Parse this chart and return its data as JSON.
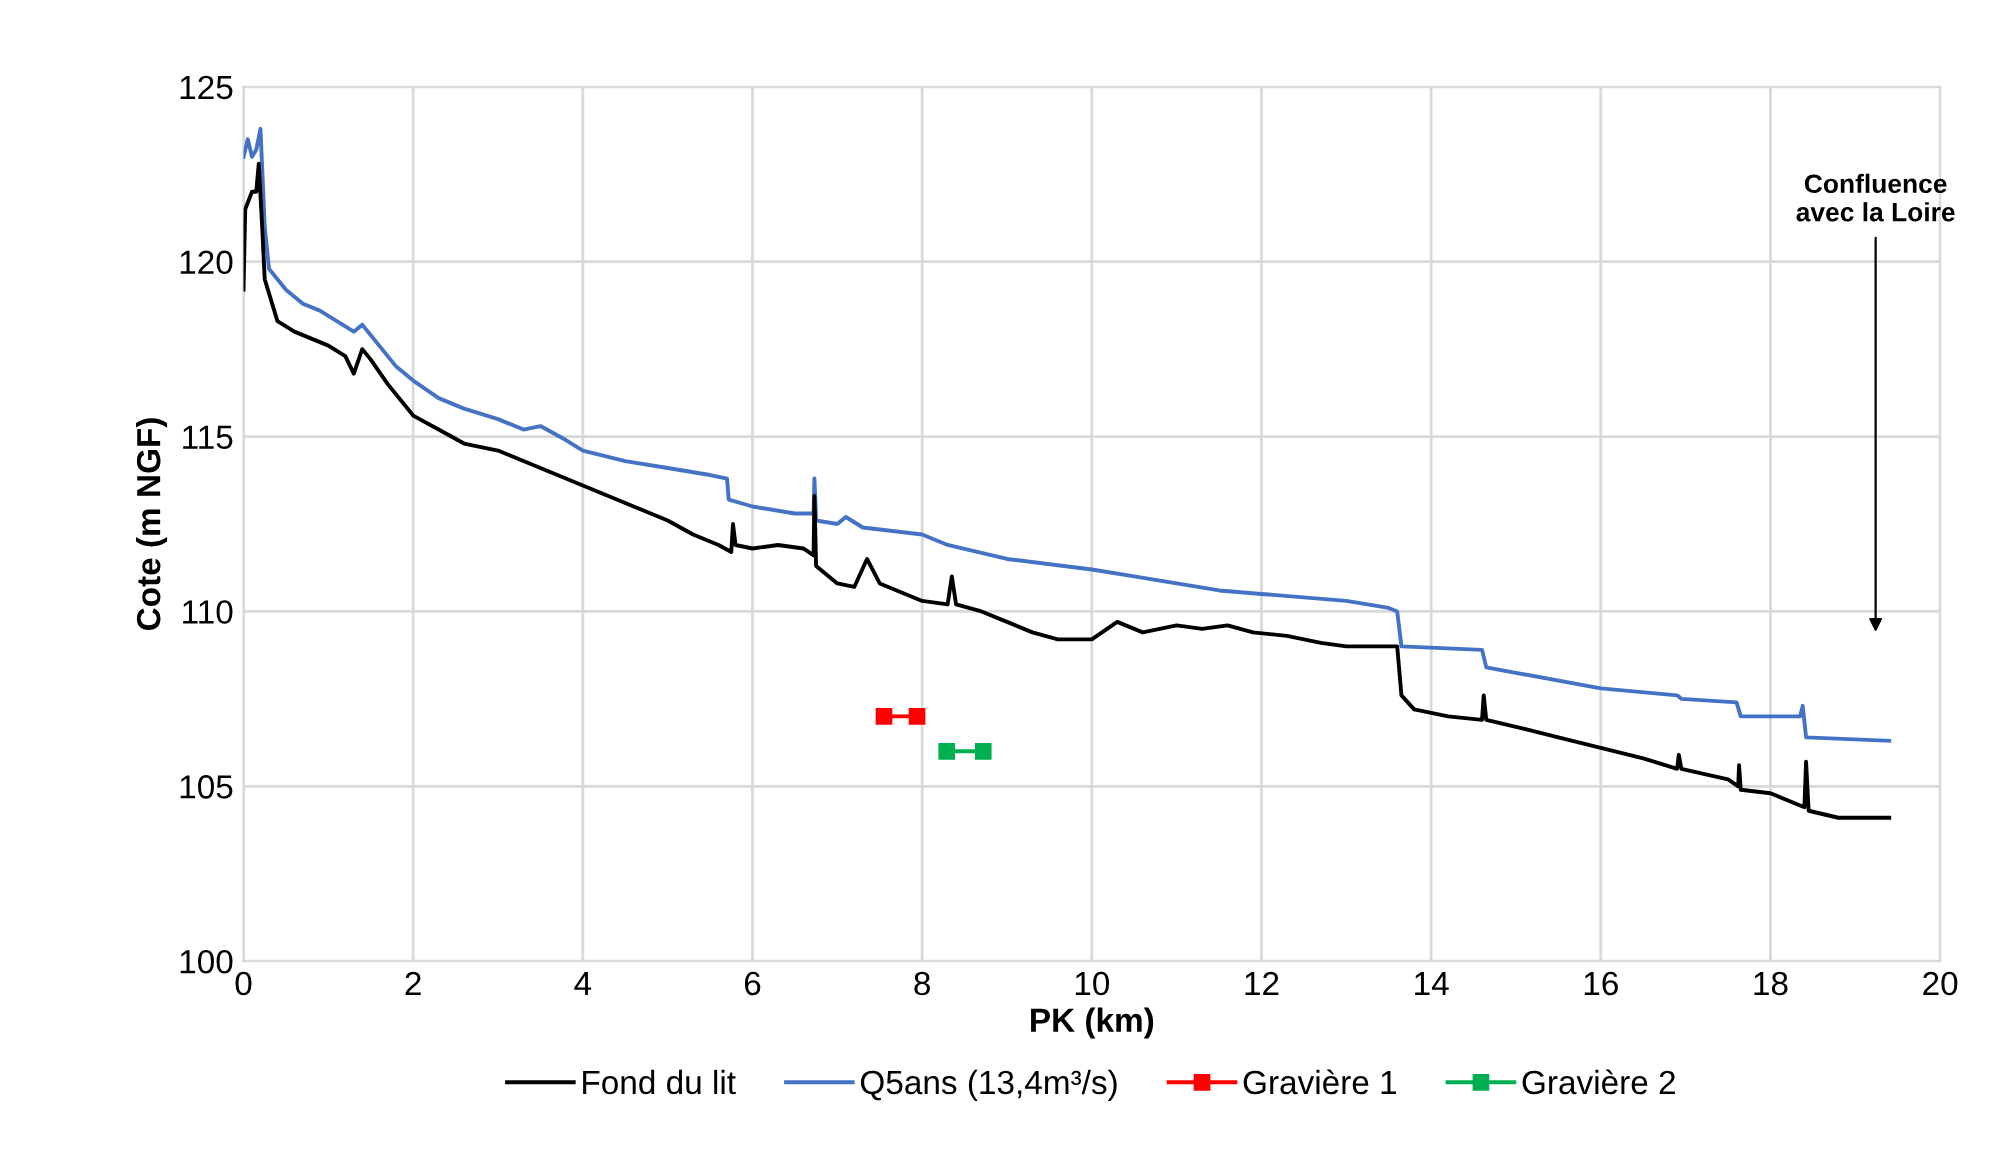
{
  "chart_data": {
    "type": "line",
    "xlabel": "PK (km)",
    "ylabel": "Cote (m NGF)",
    "xlim": [
      0,
      20
    ],
    "xticks": [
      0,
      2,
      4,
      6,
      8,
      10,
      12,
      14,
      16,
      18,
      20
    ],
    "ylim": [
      100,
      125
    ],
    "yticks": [
      100,
      105,
      110,
      115,
      120,
      125
    ],
    "grid": true,
    "legend": "bottom",
    "annotations": [
      "Confluence\navec la Loire"
    ],
    "series": [
      {
        "name": "Fond du lit",
        "color": "#000000",
        "marker": "none",
        "x": [
          0,
          0.02,
          0.1,
          0.15,
          0.18,
          0.22,
          0.25,
          0.4,
          0.6,
          0.8,
          1.0,
          1.2,
          1.3,
          1.4,
          1.5,
          1.7,
          2.0,
          2.3,
          2.6,
          3.0,
          3.3,
          3.6,
          4.0,
          4.3,
          4.6,
          5.0,
          5.3,
          5.6,
          5.75,
          5.77,
          5.8,
          6.0,
          6.3,
          6.6,
          6.72,
          6.73,
          6.75,
          7.0,
          7.2,
          7.35,
          7.5,
          7.8,
          8.0,
          8.3,
          8.35,
          8.4,
          8.7,
          9.0,
          9.3,
          9.6,
          10.0,
          10.3,
          10.6,
          11.0,
          11.3,
          11.6,
          11.9,
          12.3,
          12.7,
          13.0,
          13.6,
          13.65,
          13.8,
          14.2,
          14.6,
          14.62,
          14.65,
          15.0,
          15.5,
          16.0,
          16.5,
          16.9,
          16.92,
          16.95,
          17.5,
          17.62,
          17.63,
          17.65,
          18.0,
          18.4,
          18.42,
          18.45,
          18.8,
          19.4
        ],
        "values": [
          119.2,
          121.5,
          122,
          122,
          122.8,
          121,
          119.5,
          118.3,
          118,
          117.8,
          117.6,
          117.3,
          116.8,
          117.5,
          117.2,
          116.5,
          115.6,
          115.2,
          114.8,
          114.6,
          114.3,
          114.0,
          113.6,
          113.3,
          113.0,
          112.6,
          112.2,
          111.9,
          111.7,
          112.5,
          111.9,
          111.8,
          111.9,
          111.8,
          111.6,
          113.3,
          111.3,
          110.8,
          110.7,
          111.5,
          110.8,
          110.5,
          110.3,
          110.2,
          111.0,
          110.2,
          110.0,
          109.7,
          109.4,
          109.2,
          109.2,
          109.7,
          109.4,
          109.6,
          109.5,
          109.6,
          109.4,
          109.3,
          109.1,
          109.0,
          109.0,
          107.6,
          107.2,
          107.0,
          106.9,
          107.6,
          106.9,
          106.7,
          106.4,
          106.1,
          105.8,
          105.5,
          105.9,
          105.5,
          105.2,
          105.0,
          105.6,
          104.9,
          104.8,
          104.4,
          105.7,
          104.3,
          104.1,
          104.1
        ]
      },
      {
        "name": "Q5ans (13,4m³/s)",
        "color": "#4472c4",
        "marker": "none",
        "x": [
          0,
          0.05,
          0.1,
          0.15,
          0.2,
          0.25,
          0.3,
          0.5,
          0.7,
          0.9,
          1.1,
          1.3,
          1.4,
          1.6,
          1.8,
          2.0,
          2.3,
          2.6,
          3.0,
          3.3,
          3.5,
          3.8,
          4.0,
          4.5,
          5.0,
          5.5,
          5.7,
          5.72,
          6.0,
          6.5,
          6.72,
          6.73,
          6.75,
          7.0,
          7.1,
          7.3,
          8.0,
          8.3,
          9.0,
          10.0,
          10.5,
          11.0,
          11.5,
          12.0,
          13.0,
          13.5,
          13.6,
          13.65,
          14.6,
          14.65,
          16.0,
          16.9,
          16.95,
          17.6,
          17.65,
          18.35,
          18.38,
          18.42,
          19.4
        ],
        "values": [
          123,
          123.5,
          123,
          123.2,
          123.8,
          121,
          119.8,
          119.2,
          118.8,
          118.6,
          118.3,
          118.0,
          118.2,
          117.6,
          117.0,
          116.6,
          116.1,
          115.8,
          115.5,
          115.2,
          115.3,
          114.9,
          114.6,
          114.3,
          114.1,
          113.9,
          113.8,
          113.2,
          113.0,
          112.8,
          112.8,
          113.8,
          112.6,
          112.5,
          112.7,
          112.4,
          112.2,
          111.9,
          111.5,
          111.2,
          111.0,
          110.8,
          110.6,
          110.5,
          110.3,
          110.1,
          110.0,
          109.0,
          108.9,
          108.4,
          107.8,
          107.6,
          107.5,
          107.4,
          107.0,
          107.0,
          107.3,
          106.4,
          106.3
        ]
      },
      {
        "name": "Gravière 1",
        "color": "#ff0000",
        "marker": "square",
        "x": [
          7.55,
          7.94
        ],
        "values": [
          107,
          107
        ]
      },
      {
        "name": "Gravière 2",
        "color": "#00b050",
        "marker": "square",
        "x": [
          8.29,
          8.72
        ],
        "values": [
          106,
          106
        ]
      }
    ]
  }
}
